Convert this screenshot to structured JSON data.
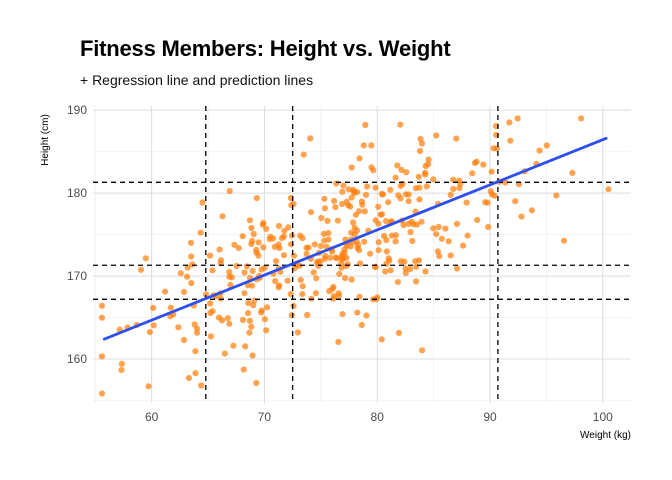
{
  "chart_data": {
    "type": "scatter",
    "title": "Fitness Members: Height vs. Weight",
    "subtitle": "+ Regression line and prediction lines",
    "xlabel": "Weight (kg)",
    "ylabel": "Height (cm)",
    "xlim": [
      54.8,
      102.5
    ],
    "ylim": [
      154.7,
      190.5
    ],
    "xticks": [
      60,
      70,
      80,
      90,
      100
    ],
    "yticks": [
      160,
      170,
      180,
      190
    ],
    "grid": true,
    "point_color": "#ff7f0e",
    "regression": {
      "color": "#2e4ff0",
      "x": [
        55.8,
        100.3
      ],
      "y": [
        162.4,
        186.6
      ]
    },
    "prediction_lines": {
      "style": "dashed",
      "color": "#000000",
      "vertical_x": [
        64.8,
        72.5,
        90.7
      ],
      "horizontal_y": [
        167.2,
        171.3,
        181.3
      ]
    },
    "seed": 20240517,
    "n_points": 400
  }
}
